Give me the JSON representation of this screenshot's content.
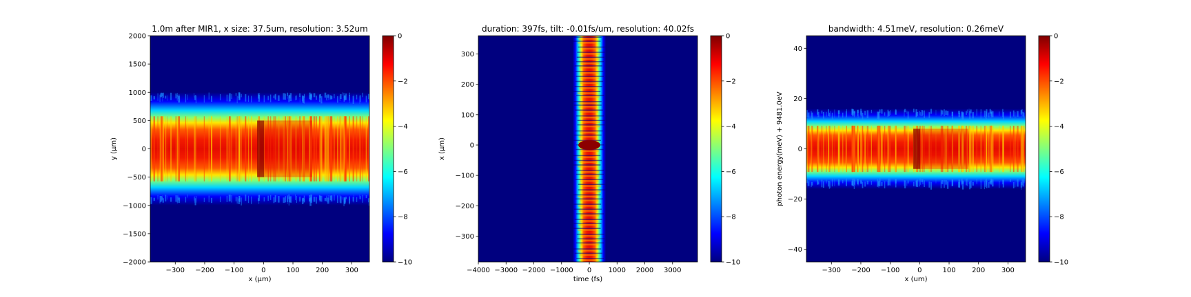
{
  "colormap": "jet",
  "chart_data": [
    {
      "type": "heatmap",
      "title": "1.0m after MIR1, x size: 37.5um, resolution: 3.52um",
      "xlabel": "x (μm)",
      "ylabel": "y (μm)",
      "xlim": [
        -385,
        360
      ],
      "ylim": [
        -2000,
        2000
      ],
      "xticks": [
        -300,
        -200,
        -100,
        0,
        100,
        200,
        300
      ],
      "xticklabels": [
        "−300",
        "−200",
        "−100",
        "0",
        "100",
        "200",
        "300"
      ],
      "yticks": [
        -2000,
        -1500,
        -1000,
        -500,
        0,
        500,
        1000,
        1500,
        2000
      ],
      "yticklabels": [
        "−2000",
        "−1500",
        "−1000",
        "−500",
        "0",
        "500",
        "1000",
        "1500",
        "2000"
      ],
      "band_orientation": "horizontal",
      "band_half_width": 1000,
      "core_half_width": 500,
      "peak_position": -10,
      "colorbar": {
        "range": [
          -10,
          0
        ],
        "ticks": [
          0,
          -2,
          -4,
          -6,
          -8,
          -10
        ],
        "ticklabels": [
          "0",
          "−2",
          "−4",
          "−6",
          "−8",
          "−10"
        ]
      }
    },
    {
      "type": "heatmap",
      "title": "duration: 397fs, tilt: -0.01fs/um, resolution: 40.02fs",
      "xlabel": "time (fs)",
      "ylabel": "x (μm)",
      "xlim": [
        -4000,
        3900
      ],
      "ylim": [
        -385,
        360
      ],
      "xticks": [
        -4000,
        -3000,
        -2000,
        -1000,
        0,
        1000,
        2000,
        3000
      ],
      "xticklabels": [
        "−4000",
        "−3000",
        "−2000",
        "−1000",
        "0",
        "1000",
        "2000",
        "3000"
      ],
      "yticks": [
        -300,
        -200,
        -100,
        0,
        100,
        200,
        300
      ],
      "yticklabels": [
        "−300",
        "−200",
        "−100",
        "0",
        "100",
        "200",
        "300"
      ],
      "band_orientation": "vertical",
      "band_half_width": 600,
      "core_half_width": 330,
      "peak_position": 0,
      "colorbar": {
        "range": [
          -10,
          0
        ],
        "ticks": [
          0,
          -2,
          -4,
          -6,
          -8,
          -10
        ],
        "ticklabels": [
          "0",
          "−2",
          "−4",
          "−6",
          "−8",
          "−10"
        ]
      }
    },
    {
      "type": "heatmap",
      "title": "bandwidth: 4.51meV, resolution: 0.26meV",
      "xlabel": "x (um)",
      "ylabel": "photon energy(meV) + 9481.0eV",
      "xlim": [
        -385,
        360
      ],
      "ylim": [
        -45,
        45
      ],
      "xticks": [
        -300,
        -200,
        -100,
        0,
        100,
        200,
        300
      ],
      "xticklabels": [
        "−300",
        "−200",
        "−100",
        "0",
        "100",
        "200",
        "300"
      ],
      "yticks": [
        -40,
        -20,
        0,
        20,
        40
      ],
      "yticklabels": [
        "−40",
        "−20",
        "0",
        "20",
        "40"
      ],
      "band_orientation": "horizontal",
      "band_half_width": 16,
      "core_half_width": 8,
      "peak_position": -10,
      "colorbar": {
        "range": [
          -10,
          0
        ],
        "ticks": [
          0,
          -2,
          -4,
          -6,
          -8,
          -10
        ],
        "ticklabels": [
          "0",
          "−2",
          "−4",
          "−6",
          "−8",
          "−10"
        ]
      }
    }
  ]
}
